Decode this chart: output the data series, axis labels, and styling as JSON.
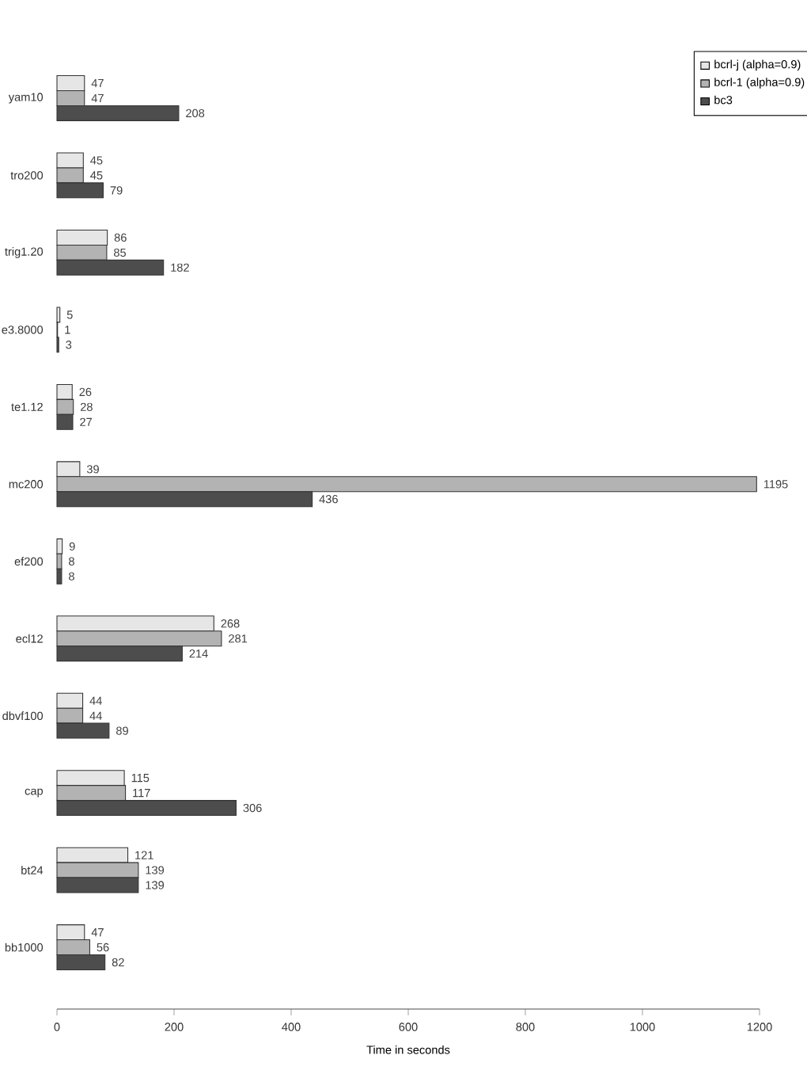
{
  "chart_data": {
    "type": "bar",
    "orientation": "horizontal",
    "xlabel": "Time in seconds",
    "categories": [
      "yam10",
      "tro200",
      "trig1.20",
      "e3.8000",
      "te1.12",
      "mc200",
      "ef200",
      "ecl12",
      "dbvf100",
      "cap",
      "bt24",
      "bb1000"
    ],
    "series": [
      {
        "name": "bcrl-j (alpha=0.9)",
        "color": "#e6e6e6",
        "values": [
          47,
          45,
          86,
          5,
          26,
          39,
          9,
          268,
          44,
          115,
          121,
          47
        ]
      },
      {
        "name": "bcrl-1 (alpha=0.9)",
        "color": "#b3b3b3",
        "values": [
          47,
          45,
          85,
          1,
          28,
          1195,
          8,
          281,
          44,
          117,
          139,
          56
        ]
      },
      {
        "name": "bc3",
        "color": "#4d4d4d",
        "values": [
          208,
          79,
          182,
          3,
          27,
          436,
          8,
          214,
          89,
          306,
          139,
          82
        ]
      }
    ],
    "xlim": [
      0,
      1200
    ],
    "xticks": [
      0,
      200,
      400,
      600,
      800,
      1000,
      1200
    ],
    "data_labels": true,
    "legend": "top right",
    "grid": false
  }
}
